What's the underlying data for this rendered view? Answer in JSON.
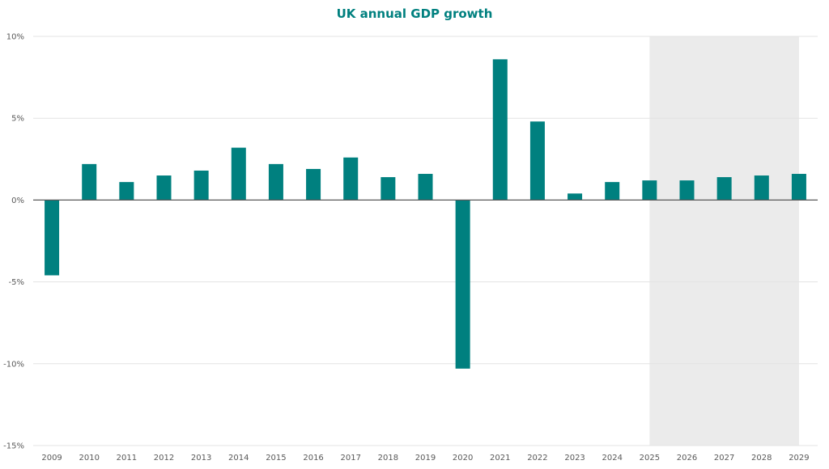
{
  "chart_data": {
    "type": "bar",
    "title": "UK annual GDP growth",
    "xlabel": "",
    "ylabel": "",
    "categories": [
      "2009",
      "2010",
      "2011",
      "2012",
      "2013",
      "2014",
      "2015",
      "2016",
      "2017",
      "2018",
      "2019",
      "2020",
      "2021",
      "2022",
      "2023",
      "2024",
      "2025",
      "2026",
      "2027",
      "2028",
      "2029"
    ],
    "series": [
      {
        "name": "UK annual GDP growth",
        "values": [
          -4.6,
          2.2,
          1.1,
          1.5,
          1.8,
          3.2,
          2.2,
          1.9,
          2.6,
          1.4,
          1.6,
          -10.3,
          8.6,
          4.8,
          0.4,
          1.1,
          1.2,
          1.2,
          1.4,
          1.5,
          1.6
        ]
      }
    ],
    "ylim": [
      -15,
      10
    ],
    "yticks": [
      10,
      5,
      0,
      -5,
      -10,
      -15
    ],
    "ytick_labels": [
      "10%",
      "5%",
      "0%",
      "-5%",
      "-10%",
      "-15%"
    ],
    "grid": true,
    "legend": "none",
    "forecast_shading": {
      "from": "2025",
      "to": "2029"
    },
    "colors": {
      "bar": "#00807f",
      "title": "#00807f",
      "shade": "#ebebeb",
      "grid": "#e3e3e3",
      "axis": "#595959",
      "tick_text": "#595959"
    }
  }
}
